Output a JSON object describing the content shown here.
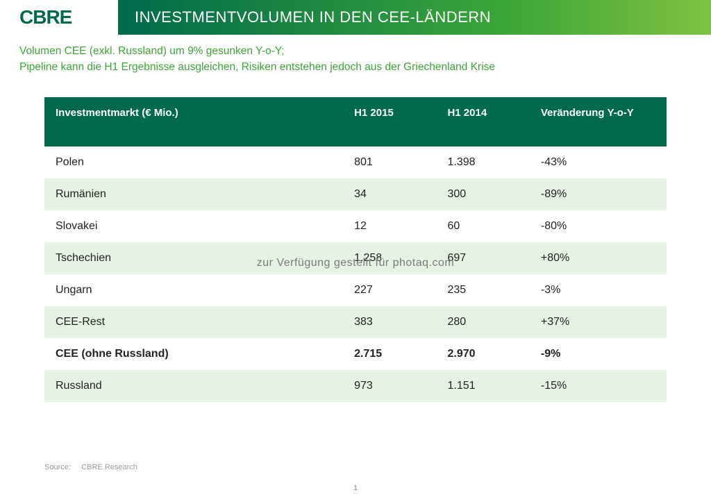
{
  "brand": {
    "logo_text": "CBRE",
    "logo_color": "#006a4d"
  },
  "header": {
    "title": "INVESTMENTVOLUMEN IN DEN CEE-LÄNDERN",
    "title_bg_gradient": [
      "#006a4d",
      "#3aa636",
      "#7ec242"
    ],
    "title_color": "#ffffff"
  },
  "subtitle": {
    "line1": "Volumen CEE (exkl. Russland) um 9% gesunken Y-o-Y;",
    "line2": "Pipeline kann die H1 Ergebnisse ausgleichen, Risiken entstehen jedoch aus der Griechenland Krise",
    "color": "#3aa636",
    "fontsize": 15.5
  },
  "table": {
    "type": "table",
    "header_bg": "#006a4d",
    "header_color": "#ffffff",
    "row_alt_bg": "#e6f2e3",
    "row_bg": "#ffffff",
    "text_color": "#222222",
    "fontsize": 16,
    "columns": [
      {
        "key": "market",
        "label": "Investmentmarkt (€ Mio.)",
        "width_pct": 48,
        "align": "left"
      },
      {
        "key": "h1_2015",
        "label": "H1 2015",
        "width_pct": 15,
        "align": "left"
      },
      {
        "key": "h1_2014",
        "label": "H1 2014",
        "width_pct": 15,
        "align": "left"
      },
      {
        "key": "change",
        "label": "Veränderung Y-o-Y",
        "width_pct": 22,
        "align": "left"
      }
    ],
    "rows": [
      {
        "market": "Polen",
        "h1_2015": "801",
        "h1_2014": "1.398",
        "change": "-43%",
        "alt": false,
        "bold": false
      },
      {
        "market": "Rumänien",
        "h1_2015": "34",
        "h1_2014": "300",
        "change": "-89%",
        "alt": true,
        "bold": false
      },
      {
        "market": "Slovakei",
        "h1_2015": "12",
        "h1_2014": "60",
        "change": "-80%",
        "alt": false,
        "bold": false
      },
      {
        "market": "Tschechien",
        "h1_2015": "1.258",
        "h1_2014": "697",
        "change": "+80%",
        "alt": true,
        "bold": false
      },
      {
        "market": "Ungarn",
        "h1_2015": "227",
        "h1_2014": "235",
        "change": "-3%",
        "alt": false,
        "bold": false
      },
      {
        "market": "CEE-Rest",
        "h1_2015": "383",
        "h1_2014": "280",
        "change": "+37%",
        "alt": true,
        "bold": false
      },
      {
        "market": "CEE (ohne Russland)",
        "h1_2015": "2.715",
        "h1_2014": "2.970",
        "change": "-9%",
        "alt": false,
        "bold": true
      },
      {
        "market": "Russland",
        "h1_2015": "973",
        "h1_2014": "1.151",
        "change": "-15%",
        "alt": true,
        "bold": false
      }
    ]
  },
  "watermark": {
    "text": "zur Verfügung gestellt für photaq.com",
    "color": "#7a7a7a"
  },
  "source": {
    "label": "Source:",
    "value": "CBRE Research",
    "color": "#9a9a9a"
  },
  "page": {
    "number": "1"
  }
}
